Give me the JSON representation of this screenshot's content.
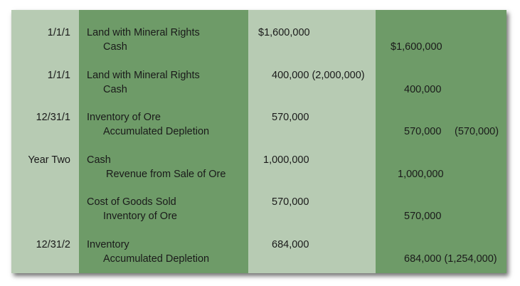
{
  "entries": [
    {
      "date": "1/1/1",
      "account_debit": "Land with Mineral Rights",
      "account_credit": "Cash",
      "debit": "$1,600,000",
      "credit": "$1,600,000",
      "credit_note": ""
    },
    {
      "date": "1/1/1",
      "account_debit": "Land with Mineral Rights",
      "account_credit": "Cash",
      "debit": "400,000 (2,000,000)",
      "credit": "400,000",
      "credit_note": ""
    },
    {
      "date": "12/31/1",
      "account_debit": "Inventory of Ore",
      "account_credit": "Accumulated Depletion",
      "debit": "570,000",
      "credit": "570,000",
      "credit_note": "(570,000)"
    },
    {
      "date": "Year Two",
      "account_debit": "Cash",
      "account_credit": "Revenue from Sale of Ore",
      "debit": "1,000,000",
      "credit": "1,000,000",
      "credit_note": ""
    },
    {
      "date": "",
      "account_debit": "Cost of Goods Sold",
      "account_credit": "Inventory of Ore",
      "debit": "570,000",
      "credit": "570,000",
      "credit_note": ""
    },
    {
      "date": "12/31/2",
      "account_debit": "Inventory",
      "account_credit": "Accumulated Depletion",
      "debit": "684,000",
      "credit": "684,000 (1,254,000)",
      "credit_note": ""
    }
  ],
  "colors": {
    "light": "#b7cbb3",
    "dark": "#6e9b68"
  }
}
